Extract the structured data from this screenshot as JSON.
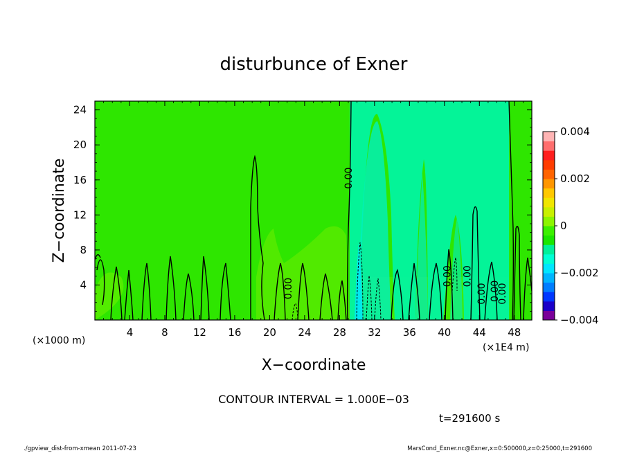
{
  "chart_data": {
    "type": "heatmap",
    "title": "disturbunce of Exner",
    "xlabel": "X−coordinate",
    "ylabel": "Z−coordinate",
    "x_unit_label": "(×1E4 m)",
    "y_unit_label": "(×1000 m)",
    "x_ticks": [
      "4",
      "8",
      "12",
      "16",
      "20",
      "24",
      "28",
      "32",
      "36",
      "40",
      "44",
      "48"
    ],
    "y_ticks": [
      "4",
      "8",
      "12",
      "16",
      "20",
      "24"
    ],
    "xlim": [
      0,
      50
    ],
    "ylim": [
      0,
      25
    ],
    "colorbar": {
      "ticks": [
        "0.004",
        "0.002",
        "0",
        "−0.002",
        "−0.004"
      ],
      "range": [
        -0.004,
        0.004
      ],
      "colors": [
        "#7a0099",
        "#1a00c8",
        "#0037ff",
        "#007dff",
        "#00b4ff",
        "#00e6ff",
        "#00ffd4",
        "#00f09a",
        "#1ae600",
        "#3cf000",
        "#8cf500",
        "#c8f000",
        "#f0e600",
        "#ffc800",
        "#ff9600",
        "#ff6400",
        "#ff3c00",
        "#ff1e1e",
        "#ff6e6e",
        "#ffb4b4"
      ]
    },
    "contour_interval": "CONTOUR INTERVAL = 1.000E−03",
    "contour_labels": [
      "0.00",
      "0.00",
      "0.00",
      "0.00",
      "0.00",
      "0.00",
      "0.00"
    ],
    "grid": false
  },
  "time_label": "t=291600 s",
  "footer_left": "./gpview_dist-from-xmean  2011-07-23",
  "footer_right": "MarsCond_Exner.nc@Exner,x=0:500000,z=0:25000,t=291600"
}
